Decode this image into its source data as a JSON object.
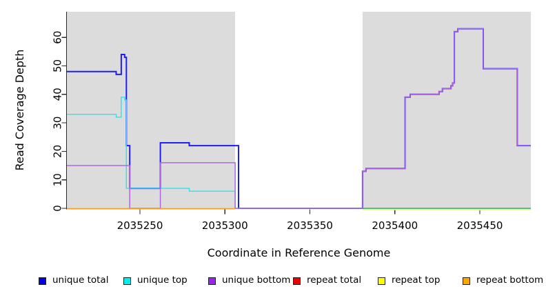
{
  "chart_data": {
    "type": "line",
    "step_mode": "step-after",
    "title": "",
    "xlabel": "Coordinate in Reference Genome",
    "ylabel": "Read Coverage Depth",
    "xlim": [
      2035207,
      2035480
    ],
    "ylim": [
      0,
      69
    ],
    "xticks": [
      2035250,
      2035300,
      2035350,
      2035400,
      2035450
    ],
    "yticks": [
      0,
      10,
      20,
      30,
      40,
      50,
      60
    ],
    "grid": false,
    "background_regions": [
      {
        "from": 2035207,
        "to": 2035306,
        "color": "#dcdcdc"
      },
      {
        "from": 2035306,
        "to": 2035381,
        "color": "#ffffff"
      },
      {
        "from": 2035381,
        "to": 2035480,
        "color": "#dcdcdc"
      }
    ],
    "series": [
      {
        "name": "unique total",
        "line_color": "#1e1ef2",
        "width": 2,
        "segments": [
          [
            [
              2035207,
              48
            ],
            [
              2035236,
              47
            ],
            [
              2035239,
              54
            ],
            [
              2035241,
              53
            ],
            [
              2035242,
              22
            ],
            [
              2035244,
              7
            ],
            [
              2035262,
              23
            ],
            [
              2035279,
              22
            ],
            [
              2035308,
              0
            ],
            [
              2035381,
              13
            ],
            [
              2035383,
              14
            ],
            [
              2035406,
              39
            ],
            [
              2035409,
              40
            ],
            [
              2035426,
              41
            ],
            [
              2035428,
              42
            ],
            [
              2035433,
              43
            ],
            [
              2035434,
              44
            ],
            [
              2035435,
              62
            ],
            [
              2035437,
              63
            ],
            [
              2035452,
              49
            ],
            [
              2035472,
              22
            ],
            [
              2035480,
              22
            ]
          ]
        ]
      },
      {
        "name": "unique top",
        "line_color": "#28e4ee",
        "width": 1.4,
        "segments": [
          [
            [
              2035207,
              33
            ],
            [
              2035236,
              32
            ],
            [
              2035239,
              39
            ],
            [
              2035241,
              38
            ],
            [
              2035242,
              7
            ],
            [
              2035279,
              6
            ],
            [
              2035306,
              0
            ],
            [
              2035480,
              0
            ]
          ]
        ]
      },
      {
        "name": "unique bottom",
        "line_color": "#b163e8",
        "width": 1.5,
        "segments": [
          [
            [
              2035207,
              15
            ],
            [
              2035244,
              0
            ],
            [
              2035262,
              16
            ],
            [
              2035306,
              0
            ],
            [
              2035381,
              13
            ],
            [
              2035383,
              14
            ],
            [
              2035406,
              39
            ],
            [
              2035409,
              40
            ],
            [
              2035426,
              41
            ],
            [
              2035428,
              42
            ],
            [
              2035433,
              43
            ],
            [
              2035434,
              44
            ],
            [
              2035435,
              62
            ],
            [
              2035437,
              63
            ],
            [
              2035452,
              49
            ],
            [
              2035472,
              22
            ],
            [
              2035480,
              22
            ]
          ]
        ]
      },
      {
        "name": "repeat total",
        "line_color": "#ee1111",
        "width": 1.4,
        "segments": []
      },
      {
        "name": "repeat top",
        "line_color": "#f2ef9a",
        "width": 1.6,
        "dy": 2,
        "segments": [
          [
            [
              2035381,
              0
            ],
            [
              2035480,
              0
            ]
          ]
        ]
      },
      {
        "name": "repeat bottom",
        "line_color": "#ff9d1e",
        "width": 1.8,
        "dy": 0.5,
        "segments": [
          [
            [
              2035207,
              0
            ],
            [
              2035306,
              0
            ]
          ]
        ]
      },
      {
        "name": "baseline-green-unlabeled",
        "line_color": "#4cb05c",
        "width": 1.5,
        "segments": [
          [
            [
              2035381,
              0
            ],
            [
              2035480,
              0
            ]
          ]
        ]
      }
    ]
  },
  "legend": {
    "items": [
      {
        "label": "unique total",
        "color": "#0000ee"
      },
      {
        "label": "unique top",
        "color": "#00eeee"
      },
      {
        "label": "unique bottom",
        "color": "#a020f0"
      },
      {
        "label": "repeat total",
        "color": "#ee0000"
      },
      {
        "label": "repeat top",
        "color": "#ffff00"
      },
      {
        "label": "repeat bottom",
        "color": "#ffa500"
      }
    ]
  }
}
